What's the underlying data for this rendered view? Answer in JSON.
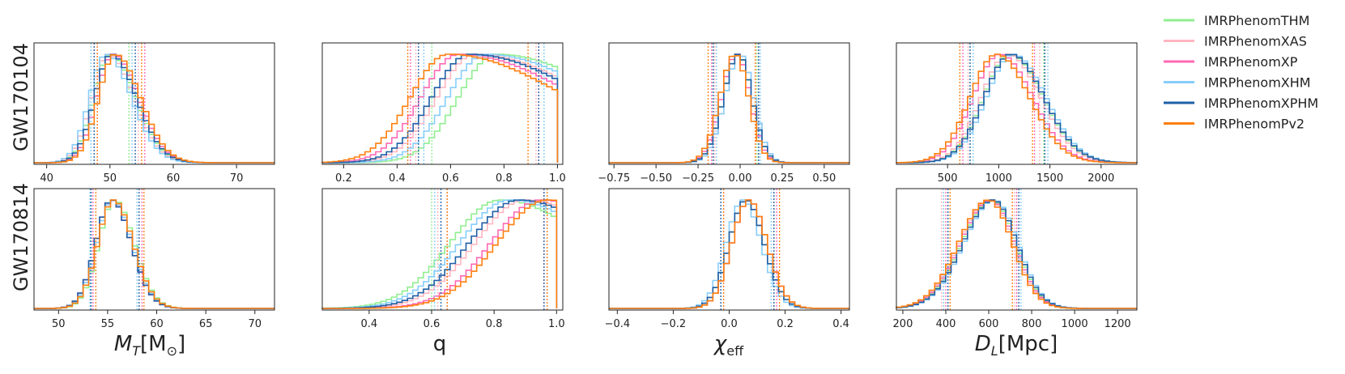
{
  "legend": {
    "entries": [
      {
        "name": "IMRPhenomTHM",
        "color": "#90ee90"
      },
      {
        "name": "IMRPhenomXAS",
        "color": "#ffb6c1"
      },
      {
        "name": "IMRPhenomXP",
        "color": "#ff69b4"
      },
      {
        "name": "IMRPhenomXHM",
        "color": "#87cefa"
      },
      {
        "name": "IMRPhenomXPHM",
        "color": "#1f5fa6"
      },
      {
        "name": "IMRPhenomPv2",
        "color": "#ff7f0e"
      }
    ]
  },
  "rows": [
    "GW170104",
    "GW170814"
  ],
  "columns": [
    {
      "xlabel_main": "M",
      "xlabel_sub": "T",
      "xlabel_rest": "[M",
      "xlabel_sym": "⊙",
      "xlabel_end": "]"
    },
    {
      "xlabel_main": "q"
    },
    {
      "xlabel_main": "χ",
      "xlabel_sub": "eff"
    },
    {
      "xlabel_main": "D",
      "xlabel_sub": "L",
      "xlabel_rest": "[Mpc]"
    }
  ],
  "chart_data": [
    {
      "type": "histogram",
      "event": "GW170104",
      "parameter": "M_T[M_sun]",
      "xlim": [
        38,
        76
      ],
      "xticks": [
        "40",
        "50",
        "60",
        "70"
      ],
      "xtick_values": [
        40,
        50,
        60,
        70
      ],
      "dist": {
        "kind": "skew",
        "peak": 50,
        "left_sd": 2.6,
        "right_sd": 4.0,
        "lo": 38,
        "hi": 76
      },
      "series": [
        {
          "name": "IMRPhenomTHM",
          "shift": 0.0,
          "ci": [
            47.0,
            53.0
          ]
        },
        {
          "name": "IMRPhenomXAS",
          "shift": -0.3,
          "ci": [
            47.5,
            54.5
          ]
        },
        {
          "name": "IMRPhenomXP",
          "shift": 0.5,
          "ci": [
            48.0,
            55.5
          ]
        },
        {
          "name": "IMRPhenomXHM",
          "shift": -0.6,
          "ci": [
            47.0,
            53.5
          ]
        },
        {
          "name": "IMRPhenomXPHM",
          "shift": 0.2,
          "ci": [
            47.5,
            54.0
          ]
        },
        {
          "name": "IMRPhenomPv2",
          "shift": 0.8,
          "ci": [
            48.0,
            55.0
          ]
        }
      ]
    },
    {
      "type": "histogram",
      "event": "GW170104",
      "parameter": "q",
      "xlim": [
        0.12,
        1.02
      ],
      "xticks": [
        "0.2",
        "0.4",
        "0.6",
        "0.8",
        "1.0"
      ],
      "xtick_values": [
        0.2,
        0.4,
        0.6,
        0.8,
        1.0
      ],
      "dist": {
        "kind": "skew",
        "peak": 0.65,
        "left_sd": 0.14,
        "right_sd": 0.45,
        "lo": 0.12,
        "hi": 1.0
      },
      "series": [
        {
          "name": "IMRPhenomTHM",
          "shift": 0.12,
          "ci": [
            0.53,
            0.95
          ]
        },
        {
          "name": "IMRPhenomXAS",
          "shift": 0.04,
          "ci": [
            0.47,
            0.92
          ]
        },
        {
          "name": "IMRPhenomXP",
          "shift": -0.02,
          "ci": [
            0.45,
            0.93
          ]
        },
        {
          "name": "IMRPhenomXHM",
          "shift": 0.08,
          "ci": [
            0.5,
            0.95
          ]
        },
        {
          "name": "IMRPhenomXPHM",
          "shift": 0.02,
          "ci": [
            0.48,
            0.93
          ]
        },
        {
          "name": "IMRPhenomPv2",
          "shift": -0.06,
          "ci": [
            0.44,
            0.89
          ]
        }
      ]
    },
    {
      "type": "histogram",
      "event": "GW170104",
      "parameter": "chi_eff",
      "xlim": [
        -0.78,
        0.65
      ],
      "xticks": [
        "−0.75",
        "−0.50",
        "−0.25",
        "0.00",
        "0.25",
        "0.50"
      ],
      "xtick_values": [
        -0.75,
        -0.5,
        -0.25,
        0.0,
        0.25,
        0.5
      ],
      "dist": {
        "kind": "skew",
        "peak": -0.01,
        "left_sd": 0.09,
        "right_sd": 0.08,
        "lo": -0.78,
        "hi": 0.65
      },
      "series": [
        {
          "name": "IMRPhenomTHM",
          "shift": 0.0,
          "ci": [
            -0.16,
            0.1
          ]
        },
        {
          "name": "IMRPhenomXAS",
          "shift": 0.01,
          "ci": [
            -0.15,
            0.11
          ]
        },
        {
          "name": "IMRPhenomXP",
          "shift": -0.01,
          "ci": [
            -0.17,
            0.09
          ]
        },
        {
          "name": "IMRPhenomXHM",
          "shift": 0.01,
          "ci": [
            -0.14,
            0.12
          ]
        },
        {
          "name": "IMRPhenomXPHM",
          "shift": 0.0,
          "ci": [
            -0.16,
            0.11
          ]
        },
        {
          "name": "IMRPhenomPv2",
          "shift": -0.02,
          "ci": [
            -0.19,
            0.09
          ]
        }
      ]
    },
    {
      "type": "histogram",
      "event": "GW170104",
      "parameter": "D_L[Mpc]",
      "xlim": [
        0,
        2350
      ],
      "xticks": [
        "500",
        "1000",
        "1500",
        "2000"
      ],
      "xtick_values": [
        500,
        1000,
        1500,
        2000
      ],
      "dist": {
        "kind": "skew",
        "peak": 1050,
        "left_sd": 260,
        "right_sd": 320,
        "lo": 0,
        "hi": 2350
      },
      "series": [
        {
          "name": "IMRPhenomTHM",
          "shift": 60,
          "ci": [
            720,
            1440
          ]
        },
        {
          "name": "IMRPhenomXAS",
          "shift": 40,
          "ci": [
            700,
            1400
          ]
        },
        {
          "name": "IMRPhenomXP",
          "shift": -40,
          "ci": [
            650,
            1350
          ]
        },
        {
          "name": "IMRPhenomXHM",
          "shift": 90,
          "ci": [
            750,
            1480
          ]
        },
        {
          "name": "IMRPhenomXPHM",
          "shift": 70,
          "ci": [
            720,
            1450
          ]
        },
        {
          "name": "IMRPhenomPv2",
          "shift": -70,
          "ci": [
            620,
            1330
          ]
        }
      ]
    },
    {
      "type": "histogram",
      "event": "GW170814",
      "parameter": "M_T[M_sun]",
      "xlim": [
        47.5,
        72
      ],
      "xticks": [
        "50",
        "55",
        "60",
        "65",
        "70"
      ],
      "xtick_values": [
        50,
        55,
        60,
        65,
        70
      ],
      "dist": {
        "kind": "skew",
        "peak": 55.5,
        "left_sd": 1.6,
        "right_sd": 2.0,
        "lo": 47.5,
        "hi": 72
      },
      "series": [
        {
          "name": "IMRPhenomTHM",
          "shift": 0.2,
          "ci": [
            53.5,
            58.0
          ]
        },
        {
          "name": "IMRPhenomXAS",
          "shift": 0.0,
          "ci": [
            53.5,
            58.0
          ]
        },
        {
          "name": "IMRPhenomXP",
          "shift": -0.1,
          "ci": [
            53.5,
            58.5
          ]
        },
        {
          "name": "IMRPhenomXHM",
          "shift": 0.0,
          "ci": [
            53.2,
            58.0
          ]
        },
        {
          "name": "IMRPhenomXPHM",
          "shift": -0.1,
          "ci": [
            53.3,
            58.2
          ]
        },
        {
          "name": "IMRPhenomPv2",
          "shift": 0.1,
          "ci": [
            53.8,
            58.7
          ]
        }
      ]
    },
    {
      "type": "histogram",
      "event": "GW170814",
      "parameter": "q",
      "xlim": [
        0.25,
        1.02
      ],
      "xticks": [
        "0.4",
        "0.6",
        "0.8",
        "1.0"
      ],
      "xtick_values": [
        0.4,
        0.6,
        0.8,
        1.0
      ],
      "dist": {
        "kind": "skew",
        "peak": 0.95,
        "left_sd": 0.16,
        "right_sd": 0.3,
        "lo": 0.25,
        "hi": 1.0
      },
      "series": [
        {
          "name": "IMRPhenomTHM",
          "shift": -0.13,
          "ci": [
            0.6,
            0.96
          ]
        },
        {
          "name": "IMRPhenomXAS",
          "shift": -0.05,
          "ci": [
            0.62,
            0.96
          ]
        },
        {
          "name": "IMRPhenomXP",
          "shift": 0.0,
          "ci": [
            0.65,
            0.96
          ]
        },
        {
          "name": "IMRPhenomXHM",
          "shift": -0.1,
          "ci": [
            0.61,
            0.97
          ]
        },
        {
          "name": "IMRPhenomXPHM",
          "shift": -0.07,
          "ci": [
            0.63,
            0.96
          ]
        },
        {
          "name": "IMRPhenomPv2",
          "shift": 0.02,
          "ci": [
            0.65,
            0.97
          ]
        }
      ]
    },
    {
      "type": "histogram",
      "event": "GW170814",
      "parameter": "chi_eff",
      "xlim": [
        -0.43,
        0.43
      ],
      "xticks": [
        "−0.4",
        "−0.2",
        "0.0",
        "0.2",
        "0.4"
      ],
      "xtick_values": [
        -0.4,
        -0.2,
        0.0,
        0.2,
        0.4
      ],
      "dist": {
        "kind": "skew",
        "peak": 0.06,
        "left_sd": 0.06,
        "right_sd": 0.065,
        "lo": -0.43,
        "hi": 0.43
      },
      "series": [
        {
          "name": "IMRPhenomTHM",
          "shift": 0.0,
          "ci": [
            -0.03,
            0.16
          ]
        },
        {
          "name": "IMRPhenomXAS",
          "shift": 0.0,
          "ci": [
            -0.03,
            0.16
          ]
        },
        {
          "name": "IMRPhenomXP",
          "shift": 0.01,
          "ci": [
            -0.02,
            0.17
          ]
        },
        {
          "name": "IMRPhenomXHM",
          "shift": -0.01,
          "ci": [
            -0.03,
            0.15
          ]
        },
        {
          "name": "IMRPhenomXPHM",
          "shift": 0.0,
          "ci": [
            -0.03,
            0.16
          ]
        },
        {
          "name": "IMRPhenomPv2",
          "shift": 0.01,
          "ci": [
            -0.02,
            0.18
          ]
        }
      ]
    },
    {
      "type": "histogram",
      "event": "GW170814",
      "parameter": "D_L[Mpc]",
      "xlim": [
        170,
        1290
      ],
      "xticks": [
        "200",
        "400",
        "600",
        "800",
        "1000",
        "1200"
      ],
      "xtick_values": [
        200,
        400,
        600,
        800,
        1000,
        1200
      ],
      "dist": {
        "kind": "skew",
        "peak": 610,
        "left_sd": 140,
        "right_sd": 110,
        "lo": 170,
        "hi": 1290
      },
      "series": [
        {
          "name": "IMRPhenomTHM",
          "shift": 5,
          "ci": [
            390,
            730
          ]
        },
        {
          "name": "IMRPhenomXAS",
          "shift": -5,
          "ci": [
            380,
            720
          ]
        },
        {
          "name": "IMRPhenomXP",
          "shift": 0,
          "ci": [
            400,
            730
          ]
        },
        {
          "name": "IMRPhenomXHM",
          "shift": 15,
          "ci": [
            390,
            750
          ]
        },
        {
          "name": "IMRPhenomXPHM",
          "shift": 10,
          "ci": [
            410,
            740
          ]
        },
        {
          "name": "IMRPhenomPv2",
          "shift": -10,
          "ci": [
            420,
            710
          ]
        }
      ]
    }
  ]
}
